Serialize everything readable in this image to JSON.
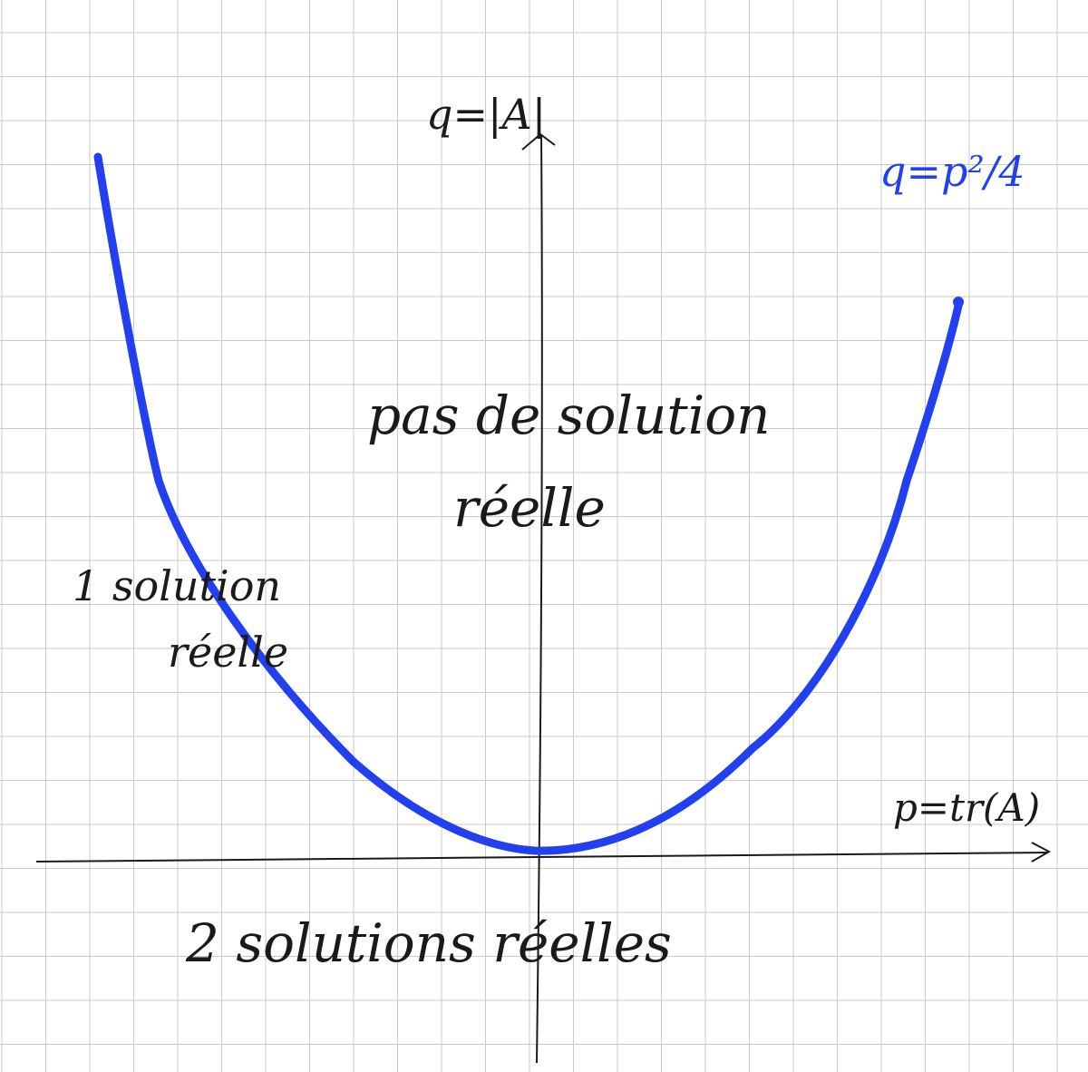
{
  "colors": {
    "paper": "#ffffff",
    "grid": "#c9c9c9",
    "ink": "#1a1a1a",
    "curve": "#2340f0"
  },
  "labels": {
    "q_axis": "q=|A|",
    "p_axis": "p=tr(A)",
    "curve": "q=p²/4",
    "region_above_line1": "pas de solution",
    "region_above_line2": "réelle",
    "region_on_curve_line1": "1 solution",
    "region_on_curve_line2": "réelle",
    "region_below": "2 solutions réelles"
  }
}
